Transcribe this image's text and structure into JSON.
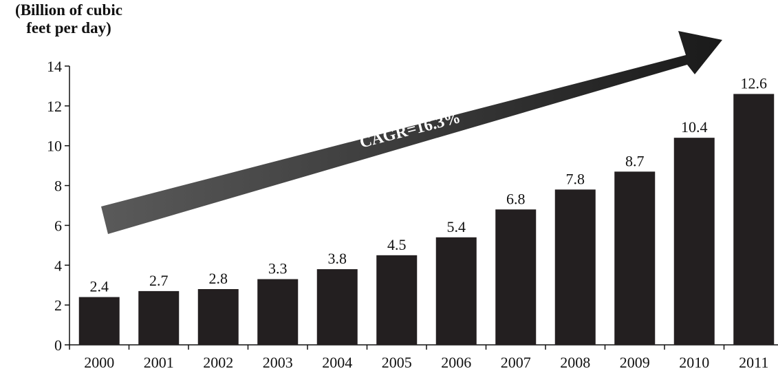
{
  "chart_data": {
    "type": "bar",
    "ylabel_lines": [
      "(Billion of cubic",
      "feet per day)"
    ],
    "categories": [
      "2000",
      "2001",
      "2002",
      "2003",
      "2004",
      "2005",
      "2006",
      "2007",
      "2008",
      "2009",
      "2010",
      "2011"
    ],
    "values": [
      2.4,
      2.7,
      2.8,
      3.3,
      3.8,
      4.5,
      5.4,
      6.8,
      7.8,
      8.7,
      10.4,
      12.6
    ],
    "data_labels": [
      "2.4",
      "2.7",
      "2.8",
      "3.3",
      "3.8",
      "4.5",
      "5.4",
      "6.8",
      "7.8",
      "8.7",
      "10.4",
      "12.6"
    ],
    "yticks": [
      0,
      2,
      4,
      6,
      8,
      10,
      12,
      14
    ],
    "ylim": [
      0,
      14
    ],
    "grid": false,
    "annotation": "CAGR=16.3%",
    "colors": {
      "bar": "#231f20",
      "arrow_dark": "#1a1a1a",
      "arrow_light": "#5a5a5a"
    }
  }
}
